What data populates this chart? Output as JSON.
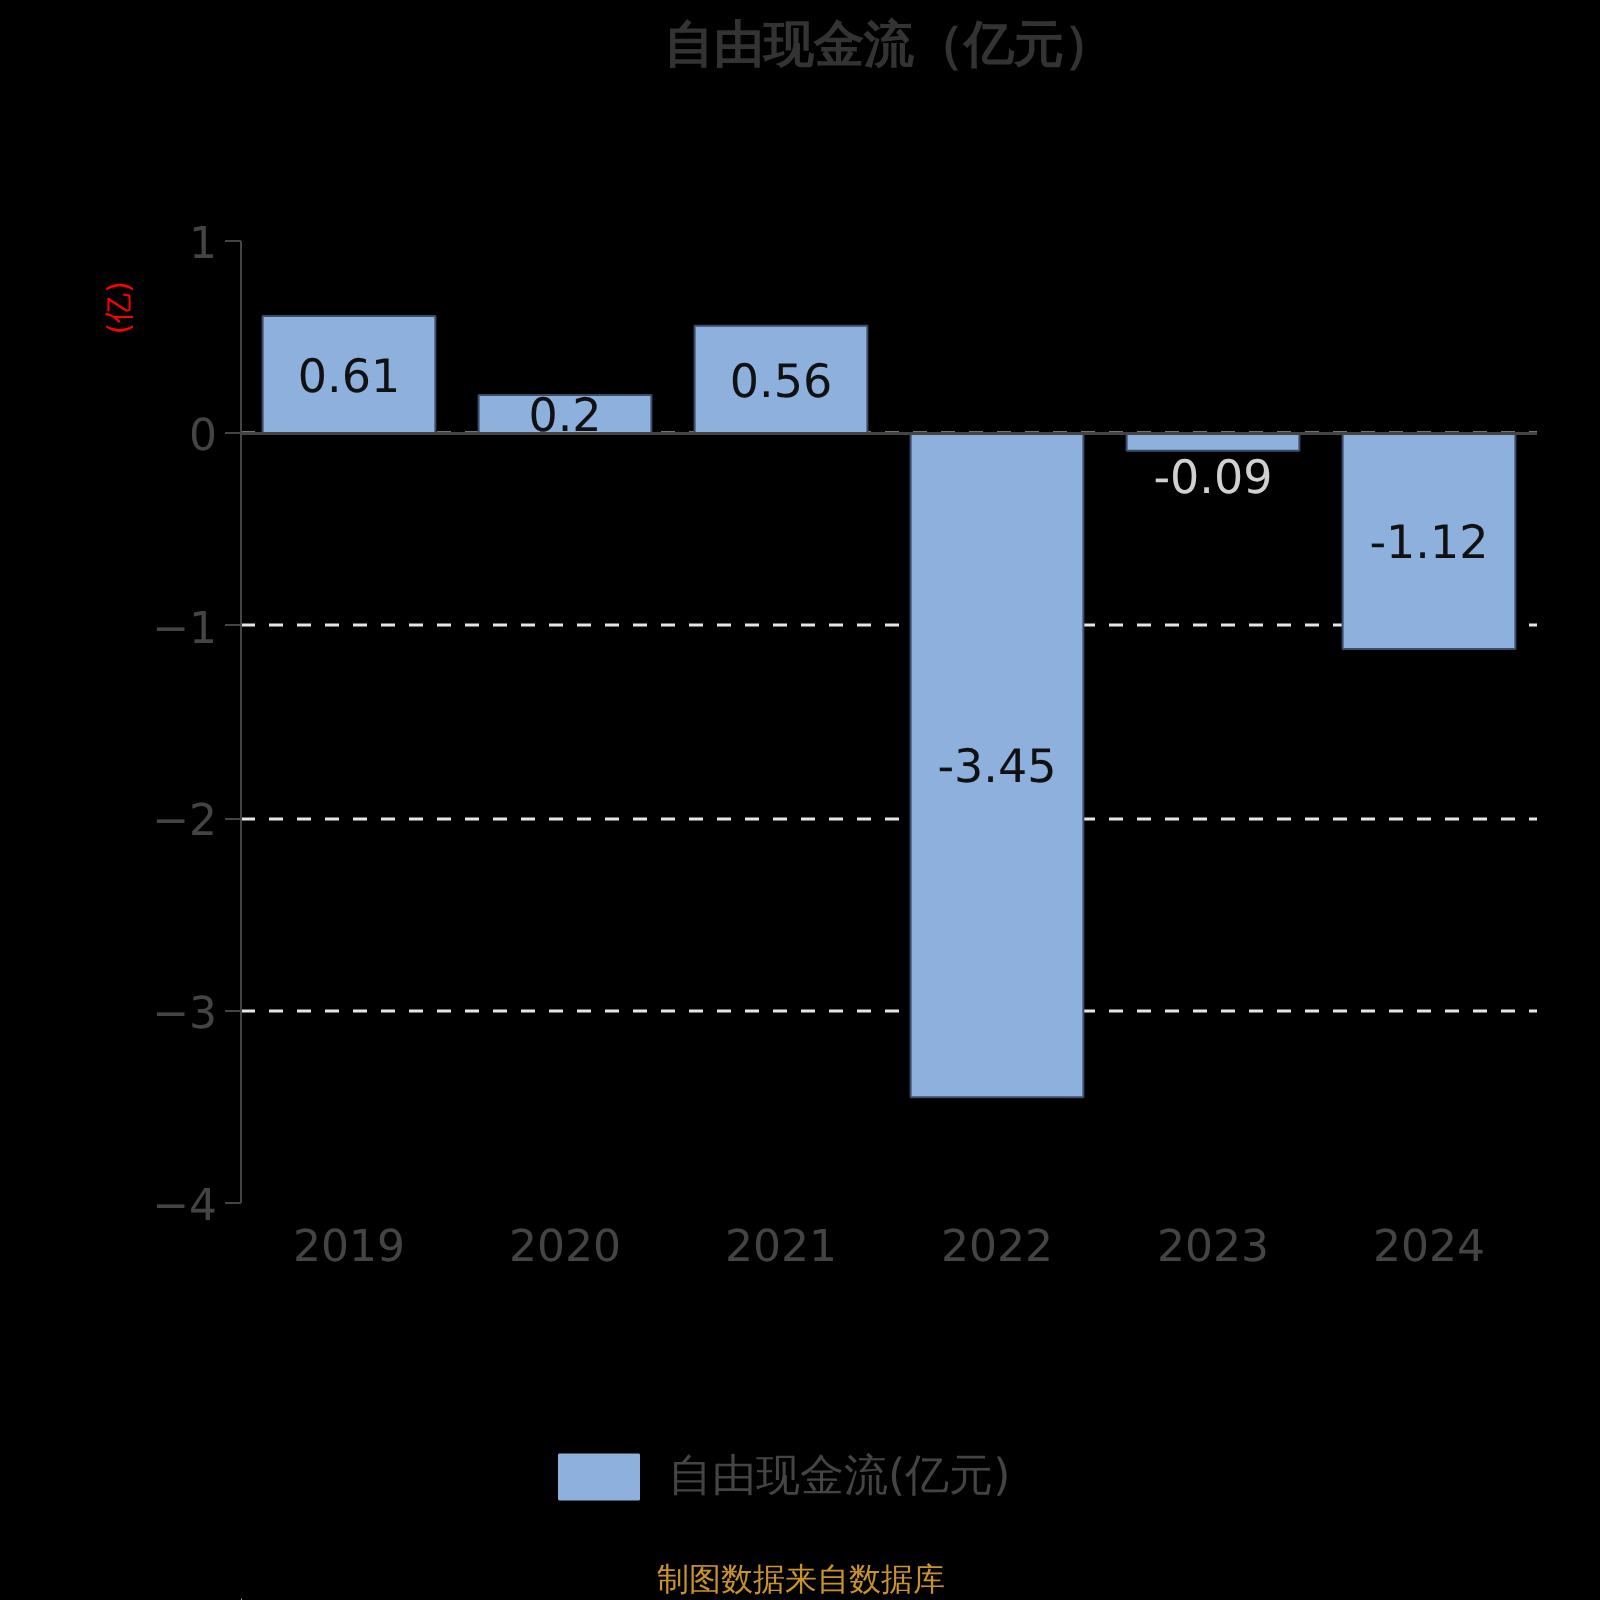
{
  "chart_data": {
    "type": "bar",
    "title": "自由现金流（亿元）",
    "ylabel": "(亿)",
    "categories": [
      "2019",
      "2020",
      "2021",
      "2022",
      "2023",
      "2024"
    ],
    "series": [
      {
        "name": "自由现金流(亿元)",
        "color": "#8eb0dd",
        "values": [
          0.61,
          0.2,
          0.56,
          -3.45,
          -0.09,
          -1.12
        ]
      }
    ],
    "ylim": [
      -4,
      1
    ],
    "yticks": [
      -4,
      -3,
      -2,
      -1,
      0,
      1
    ],
    "grid": "y",
    "legend": "bottom",
    "data_labels": true,
    "annotations": [
      "制图数据来自数据库"
    ]
  }
}
